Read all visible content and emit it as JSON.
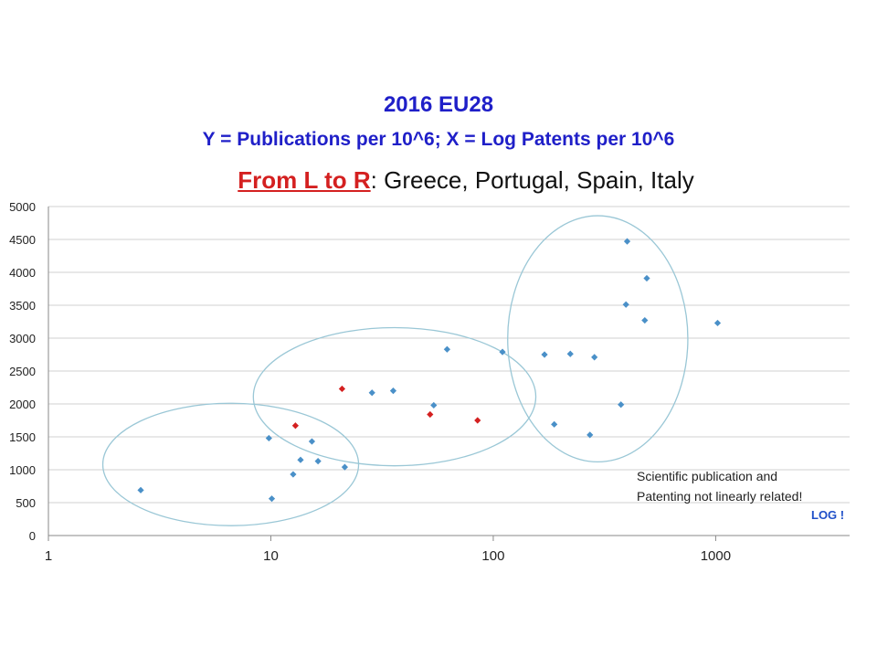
{
  "chart_data": {
    "type": "scatter",
    "title": "2016 EU28",
    "subtitle": "Y = Publications per 10^6; X = Log Patents per 10^6",
    "note": {
      "lead": "From L to R",
      "rest": ": Greece, Portugal, Spain, Italy"
    },
    "x_scale": "log",
    "xlim": [
      1,
      4000
    ],
    "ylim": [
      0,
      5000
    ],
    "x_ticks": [
      1,
      10,
      100,
      1000
    ],
    "y_ticks": [
      0,
      500,
      1000,
      1500,
      2000,
      2500,
      3000,
      3500,
      4000,
      4500,
      5000
    ],
    "grid": "horizontal",
    "colors": {
      "default": "#4a90c8",
      "highlight": "#d42020",
      "ellipse": "#9ac7d6"
    },
    "series": [
      {
        "color": "#4a90c8",
        "points": [
          {
            "x": 2.6,
            "y": 690
          },
          {
            "x": 9.8,
            "y": 1480
          },
          {
            "x": 10.1,
            "y": 560
          },
          {
            "x": 12.6,
            "y": 930
          },
          {
            "x": 13.6,
            "y": 1150
          },
          {
            "x": 15.3,
            "y": 1430
          },
          {
            "x": 16.3,
            "y": 1130
          },
          {
            "x": 21.5,
            "y": 1040
          },
          {
            "x": 28.5,
            "y": 2170
          },
          {
            "x": 35.5,
            "y": 2200
          },
          {
            "x": 54,
            "y": 1980
          },
          {
            "x": 62,
            "y": 2830
          },
          {
            "x": 110,
            "y": 2790
          },
          {
            "x": 170,
            "y": 2750
          },
          {
            "x": 188,
            "y": 1690
          },
          {
            "x": 222,
            "y": 2760
          },
          {
            "x": 272,
            "y": 1530
          },
          {
            "x": 285,
            "y": 2710
          },
          {
            "x": 375,
            "y": 1990
          },
          {
            "x": 395,
            "y": 3510
          },
          {
            "x": 400,
            "y": 4470
          },
          {
            "x": 480,
            "y": 3270
          },
          {
            "x": 490,
            "y": 3910
          },
          {
            "x": 1020,
            "y": 3230
          }
        ]
      },
      {
        "color": "#d42020",
        "points": [
          {
            "x": 12.9,
            "y": 1670
          },
          {
            "x": 20.9,
            "y": 2230
          },
          {
            "x": 52,
            "y": 1840
          },
          {
            "x": 85,
            "y": 1750
          }
        ]
      }
    ],
    "ellipses": [
      {
        "cx": 6.6,
        "cy": 1080,
        "rx_log": 0.575,
        "ry": 930
      },
      {
        "cx": 36,
        "cy": 2110,
        "rx_log": 0.635,
        "ry": 1050
      },
      {
        "cx": 295,
        "cy": 2990,
        "rx_log": 0.405,
        "ry": 1870
      }
    ],
    "annotations": [
      "Scientific publication and",
      "Patenting not linearly related!",
      "LOG !"
    ]
  }
}
